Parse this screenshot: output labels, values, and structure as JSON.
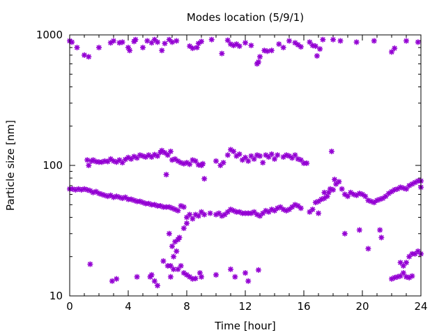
{
  "chart_data": {
    "type": "scatter",
    "title": "Modes location (5/9/1)",
    "xlabel": "Time [hour]",
    "ylabel": "Particle size [nm]",
    "xlim": [
      0,
      24
    ],
    "ylim": [
      10,
      1000
    ],
    "yscale": "log",
    "grid": false,
    "legend": "none",
    "xticks": [
      0,
      4,
      8,
      12,
      16,
      20,
      24
    ],
    "xtick_labels": [
      "0",
      "4",
      "8",
      "12",
      "16",
      "20",
      "24"
    ],
    "yticks": [
      10,
      100,
      1000
    ],
    "ytick_labels": [
      "10",
      "100",
      "1000"
    ],
    "marker": "asterisk",
    "color": "#9400d3",
    "points": [
      [
        0.0,
        900
      ],
      [
        0.15,
        880
      ],
      [
        0.5,
        800
      ],
      [
        1.0,
        700
      ],
      [
        1.3,
        680
      ],
      [
        2.0,
        800
      ],
      [
        2.8,
        870
      ],
      [
        3.0,
        900
      ],
      [
        3.4,
        870
      ],
      [
        3.6,
        880
      ],
      [
        4.0,
        800
      ],
      [
        4.1,
        760
      ],
      [
        4.4,
        890
      ],
      [
        4.5,
        920
      ],
      [
        5.0,
        800
      ],
      [
        5.3,
        900
      ],
      [
        5.6,
        870
      ],
      [
        5.8,
        920
      ],
      [
        6.0,
        880
      ],
      [
        6.3,
        760
      ],
      [
        6.5,
        860
      ],
      [
        6.8,
        920
      ],
      [
        7.0,
        880
      ],
      [
        7.3,
        900
      ],
      [
        8.2,
        820
      ],
      [
        8.4,
        790
      ],
      [
        8.7,
        800
      ],
      [
        8.8,
        860
      ],
      [
        9.0,
        890
      ],
      [
        9.7,
        920
      ],
      [
        10.4,
        720
      ],
      [
        10.8,
        910
      ],
      [
        11.0,
        850
      ],
      [
        11.2,
        830
      ],
      [
        11.4,
        850
      ],
      [
        11.6,
        820
      ],
      [
        12.0,
        870
      ],
      [
        12.4,
        830
      ],
      [
        12.8,
        600
      ],
      [
        12.9,
        620
      ],
      [
        13.0,
        680
      ],
      [
        13.3,
        760
      ],
      [
        13.5,
        750
      ],
      [
        13.8,
        760
      ],
      [
        14.3,
        850
      ],
      [
        14.6,
        800
      ],
      [
        15.0,
        900
      ],
      [
        15.4,
        870
      ],
      [
        15.6,
        840
      ],
      [
        15.8,
        810
      ],
      [
        16.4,
        880
      ],
      [
        16.6,
        830
      ],
      [
        16.8,
        820
      ],
      [
        16.9,
        690
      ],
      [
        17.1,
        780
      ],
      [
        17.3,
        920
      ],
      [
        18.0,
        920
      ],
      [
        18.5,
        900
      ],
      [
        19.6,
        880
      ],
      [
        20.8,
        900
      ],
      [
        22.0,
        740
      ],
      [
        22.2,
        790
      ],
      [
        23.0,
        900
      ],
      [
        23.8,
        880
      ],
      [
        1.2,
        110
      ],
      [
        1.3,
        100
      ],
      [
        1.5,
        108
      ],
      [
        1.6,
        110
      ],
      [
        1.8,
        107
      ],
      [
        2.0,
        106
      ],
      [
        2.2,
        106
      ],
      [
        2.4,
        108
      ],
      [
        2.6,
        107
      ],
      [
        2.8,
        112
      ],
      [
        3.0,
        108
      ],
      [
        3.2,
        106
      ],
      [
        3.4,
        110
      ],
      [
        3.6,
        105
      ],
      [
        3.8,
        111
      ],
      [
        4.0,
        115
      ],
      [
        4.2,
        112
      ],
      [
        4.4,
        117
      ],
      [
        4.6,
        114
      ],
      [
        4.8,
        120
      ],
      [
        5.0,
        118
      ],
      [
        5.2,
        116
      ],
      [
        5.4,
        120
      ],
      [
        5.6,
        116
      ],
      [
        5.8,
        121
      ],
      [
        6.0,
        118
      ],
      [
        6.2,
        126
      ],
      [
        6.3,
        130
      ],
      [
        6.5,
        125
      ],
      [
        6.7,
        120
      ],
      [
        6.9,
        128
      ],
      [
        7.0,
        110
      ],
      [
        7.2,
        112
      ],
      [
        7.4,
        108
      ],
      [
        7.6,
        105
      ],
      [
        7.8,
        103
      ],
      [
        8.0,
        105
      ],
      [
        8.2,
        102
      ],
      [
        8.4,
        110
      ],
      [
        8.6,
        108
      ],
      [
        8.8,
        101
      ],
      [
        9.0,
        100
      ],
      [
        9.1,
        103
      ],
      [
        10.0,
        108
      ],
      [
        10.3,
        100
      ],
      [
        10.5,
        105
      ],
      [
        10.8,
        120
      ],
      [
        11.0,
        132
      ],
      [
        11.2,
        128
      ],
      [
        11.4,
        118
      ],
      [
        11.6,
        122
      ],
      [
        11.8,
        110
      ],
      [
        12.0,
        115
      ],
      [
        12.2,
        108
      ],
      [
        12.4,
        118
      ],
      [
        12.6,
        112
      ],
      [
        12.8,
        120
      ],
      [
        13.0,
        118
      ],
      [
        13.2,
        105
      ],
      [
        13.4,
        120
      ],
      [
        13.6,
        116
      ],
      [
        13.8,
        122
      ],
      [
        14.0,
        112
      ],
      [
        14.2,
        120
      ],
      [
        14.6,
        116
      ],
      [
        14.8,
        120
      ],
      [
        15.0,
        118
      ],
      [
        15.2,
        114
      ],
      [
        15.4,
        120
      ],
      [
        15.6,
        112
      ],
      [
        15.8,
        110
      ],
      [
        16.0,
        104
      ],
      [
        16.2,
        104
      ],
      [
        6.6,
        85
      ],
      [
        9.2,
        79
      ],
      [
        17.9,
        128
      ],
      [
        0.0,
        66
      ],
      [
        0.2,
        66
      ],
      [
        0.4,
        65
      ],
      [
        0.6,
        66
      ],
      [
        0.8,
        65
      ],
      [
        1.0,
        66
      ],
      [
        1.2,
        65
      ],
      [
        1.4,
        64
      ],
      [
        1.6,
        62
      ],
      [
        1.8,
        63
      ],
      [
        2.0,
        61
      ],
      [
        2.2,
        60
      ],
      [
        2.4,
        59
      ],
      [
        2.6,
        58
      ],
      [
        2.8,
        59
      ],
      [
        3.0,
        57
      ],
      [
        3.2,
        58
      ],
      [
        3.4,
        57
      ],
      [
        3.6,
        56
      ],
      [
        3.8,
        57
      ],
      [
        4.0,
        55
      ],
      [
        4.2,
        55
      ],
      [
        4.4,
        54
      ],
      [
        4.6,
        53
      ],
      [
        4.8,
        53
      ],
      [
        5.0,
        52
      ],
      [
        5.2,
        51
      ],
      [
        5.4,
        51
      ],
      [
        5.6,
        50
      ],
      [
        5.8,
        50
      ],
      [
        6.0,
        49
      ],
      [
        6.2,
        49
      ],
      [
        6.4,
        48
      ],
      [
        6.6,
        48
      ],
      [
        6.8,
        48
      ],
      [
        7.0,
        47
      ],
      [
        7.2,
        46
      ],
      [
        7.4,
        45
      ],
      [
        7.6,
        49
      ],
      [
        7.8,
        48
      ],
      [
        8.0,
        40
      ],
      [
        8.2,
        42
      ],
      [
        8.4,
        39
      ],
      [
        8.6,
        42
      ],
      [
        8.8,
        41
      ],
      [
        9.0,
        44
      ],
      [
        9.2,
        42
      ],
      [
        9.6,
        43
      ],
      [
        10.0,
        42
      ],
      [
        10.2,
        43
      ],
      [
        10.4,
        41
      ],
      [
        10.6,
        42
      ],
      [
        10.8,
        44
      ],
      [
        11.0,
        46
      ],
      [
        11.2,
        45
      ],
      [
        11.4,
        44
      ],
      [
        11.6,
        44
      ],
      [
        11.8,
        43
      ],
      [
        12.0,
        43
      ],
      [
        12.2,
        43
      ],
      [
        12.4,
        43
      ],
      [
        12.6,
        44
      ],
      [
        12.8,
        42
      ],
      [
        13.0,
        41
      ],
      [
        13.2,
        43
      ],
      [
        13.4,
        45
      ],
      [
        13.6,
        44
      ],
      [
        13.8,
        46
      ],
      [
        14.0,
        45
      ],
      [
        14.2,
        47
      ],
      [
        14.4,
        48
      ],
      [
        14.6,
        46
      ],
      [
        14.8,
        45
      ],
      [
        15.0,
        46
      ],
      [
        15.2,
        48
      ],
      [
        15.4,
        50
      ],
      [
        15.6,
        49
      ],
      [
        15.8,
        47
      ],
      [
        16.4,
        44
      ],
      [
        16.6,
        46
      ],
      [
        16.8,
        52
      ],
      [
        17.0,
        53
      ],
      [
        17.2,
        55
      ],
      [
        17.4,
        56
      ],
      [
        17.6,
        58
      ],
      [
        17.7,
        62
      ],
      [
        17.8,
        66
      ],
      [
        18.0,
        65
      ],
      [
        18.2,
        72
      ],
      [
        18.4,
        75
      ],
      [
        18.6,
        66
      ],
      [
        18.8,
        60
      ],
      [
        19.0,
        58
      ],
      [
        19.2,
        62
      ],
      [
        19.4,
        60
      ],
      [
        19.6,
        59
      ],
      [
        19.8,
        61
      ],
      [
        20.0,
        60
      ],
      [
        20.2,
        58
      ],
      [
        20.4,
        54
      ],
      [
        20.6,
        53
      ],
      [
        20.8,
        52
      ],
      [
        21.0,
        54
      ],
      [
        21.2,
        55
      ],
      [
        21.4,
        56
      ],
      [
        21.6,
        58
      ],
      [
        21.8,
        61
      ],
      [
        22.0,
        63
      ],
      [
        22.2,
        65
      ],
      [
        22.4,
        66
      ],
      [
        22.6,
        68
      ],
      [
        22.8,
        67
      ],
      [
        23.0,
        66
      ],
      [
        23.2,
        70
      ],
      [
        23.4,
        72
      ],
      [
        23.6,
        74
      ],
      [
        23.8,
        76
      ],
      [
        24.0,
        76
      ],
      [
        24.0,
        68
      ],
      [
        17.0,
        43
      ],
      [
        17.4,
        62
      ],
      [
        18.1,
        78
      ],
      [
        6.8,
        30
      ],
      [
        7.0,
        24
      ],
      [
        7.2,
        26
      ],
      [
        7.4,
        27
      ],
      [
        7.5,
        28
      ],
      [
        7.8,
        33
      ],
      [
        8.0,
        36
      ],
      [
        7.1,
        20
      ],
      [
        7.3,
        22
      ],
      [
        6.9,
        17
      ],
      [
        18.8,
        30
      ],
      [
        19.8,
        32
      ],
      [
        20.4,
        23
      ],
      [
        21.2,
        32
      ],
      [
        21.3,
        28
      ],
      [
        22.6,
        18
      ],
      [
        22.8,
        17
      ],
      [
        23.0,
        18
      ],
      [
        23.2,
        20
      ],
      [
        23.4,
        21
      ],
      [
        23.6,
        21
      ],
      [
        23.8,
        22
      ],
      [
        24.0,
        21
      ],
      [
        1.4,
        17.5
      ],
      [
        2.9,
        13
      ],
      [
        3.2,
        13.5
      ],
      [
        4.6,
        14
      ],
      [
        5.5,
        14
      ],
      [
        5.6,
        14.5
      ],
      [
        5.8,
        13
      ],
      [
        6.0,
        12
      ],
      [
        6.4,
        18.5
      ],
      [
        6.7,
        17
      ],
      [
        6.9,
        14
      ],
      [
        7.1,
        16
      ],
      [
        7.4,
        16
      ],
      [
        7.6,
        17
      ],
      [
        7.8,
        15
      ],
      [
        8.0,
        14.5
      ],
      [
        8.2,
        14
      ],
      [
        8.4,
        13.5
      ],
      [
        8.6,
        13.6
      ],
      [
        8.9,
        15
      ],
      [
        9.0,
        14
      ],
      [
        10.0,
        14.5
      ],
      [
        11.0,
        16
      ],
      [
        11.3,
        14
      ],
      [
        12.0,
        15
      ],
      [
        12.2,
        13
      ],
      [
        12.9,
        15.8
      ],
      [
        22.0,
        13.5
      ],
      [
        22.2,
        13.8
      ],
      [
        22.4,
        14
      ],
      [
        22.6,
        14.2
      ],
      [
        22.8,
        15
      ],
      [
        23.0,
        14
      ],
      [
        23.2,
        13.8
      ],
      [
        23.4,
        14.2
      ]
    ]
  }
}
